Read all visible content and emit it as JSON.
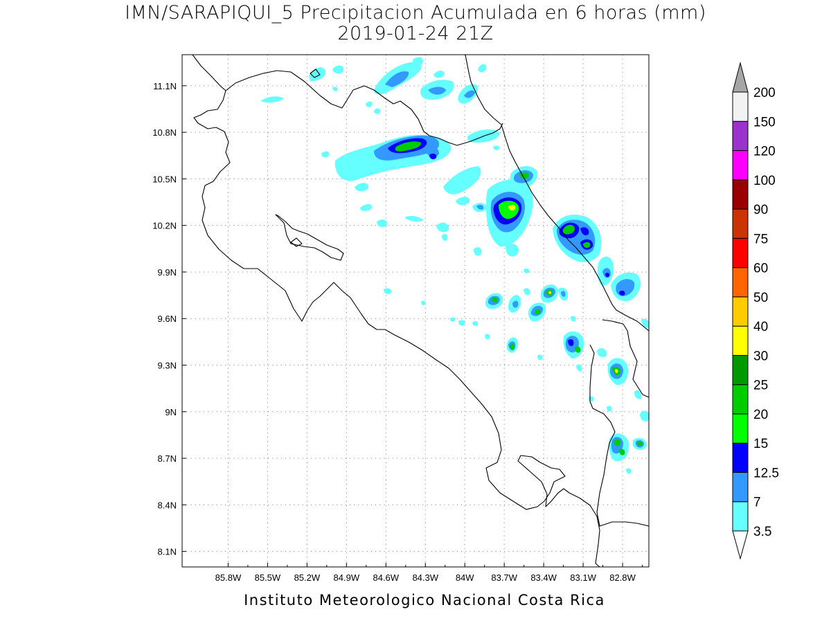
{
  "title": {
    "line1": "IMN/SARAPIQUI_5 Precipitacion Acumulada en 6 horas (mm)",
    "line2": "2019-01-24 21Z"
  },
  "footer": "Instituto Meteorologico Nacional Costa Rica",
  "map": {
    "lon_range": [
      -86.15,
      -82.6
    ],
    "lat_range": [
      8.0,
      11.3
    ],
    "xticks": [
      {
        "lon": -85.8,
        "label": "85.8W"
      },
      {
        "lon": -85.5,
        "label": "85.5W"
      },
      {
        "lon": -85.2,
        "label": "85.2W"
      },
      {
        "lon": -84.9,
        "label": "84.9W"
      },
      {
        "lon": -84.6,
        "label": "84.6W"
      },
      {
        "lon": -84.3,
        "label": "84.3W"
      },
      {
        "lon": -84.0,
        "label": "84W"
      },
      {
        "lon": -83.7,
        "label": "83.7W"
      },
      {
        "lon": -83.4,
        "label": "83.4W"
      },
      {
        "lon": -83.1,
        "label": "83.1W"
      },
      {
        "lon": -82.8,
        "label": "82.8W"
      }
    ],
    "yticks": [
      {
        "lat": 11.1,
        "label": "11.1N"
      },
      {
        "lat": 10.8,
        "label": "10.8N"
      },
      {
        "lat": 10.5,
        "label": "10.5N"
      },
      {
        "lat": 10.2,
        "label": "10.2N"
      },
      {
        "lat": 9.9,
        "label": "9.9N"
      },
      {
        "lat": 9.6,
        "label": "9.6N"
      },
      {
        "lat": 9.3,
        "label": "9.3N"
      },
      {
        "lat": 9.0,
        "label": "9N"
      },
      {
        "lat": 8.7,
        "label": "8.7N"
      },
      {
        "lat": 8.4,
        "label": "8.4N"
      },
      {
        "lat": 8.1,
        "label": "8.1N"
      }
    ],
    "grid": true
  },
  "legend": {
    "levels": [
      {
        "label": "3.5",
        "color": "#66ffff"
      },
      {
        "label": "7",
        "color": "#3399ff"
      },
      {
        "label": "12.5",
        "color": "#0000ff"
      },
      {
        "label": "15",
        "color": "#00ff00"
      },
      {
        "label": "20",
        "color": "#00cc00"
      },
      {
        "label": "25",
        "color": "#009900"
      },
      {
        "label": "30",
        "color": "#ffff00"
      },
      {
        "label": "40",
        "color": "#ffcc00"
      },
      {
        "label": "50",
        "color": "#ff6600"
      },
      {
        "label": "60",
        "color": "#ff0000"
      },
      {
        "label": "75",
        "color": "#cc3300"
      },
      {
        "label": "90",
        "color": "#990000"
      },
      {
        "label": "100",
        "color": "#ff00ff"
      },
      {
        "label": "120",
        "color": "#9933cc"
      },
      {
        "label": "150",
        "color": "#f2f2f2"
      },
      {
        "label": "200",
        "color": "#a6a6a6"
      }
    ],
    "below_color": "#ffffff",
    "above_color": "#a6a6a6"
  }
}
